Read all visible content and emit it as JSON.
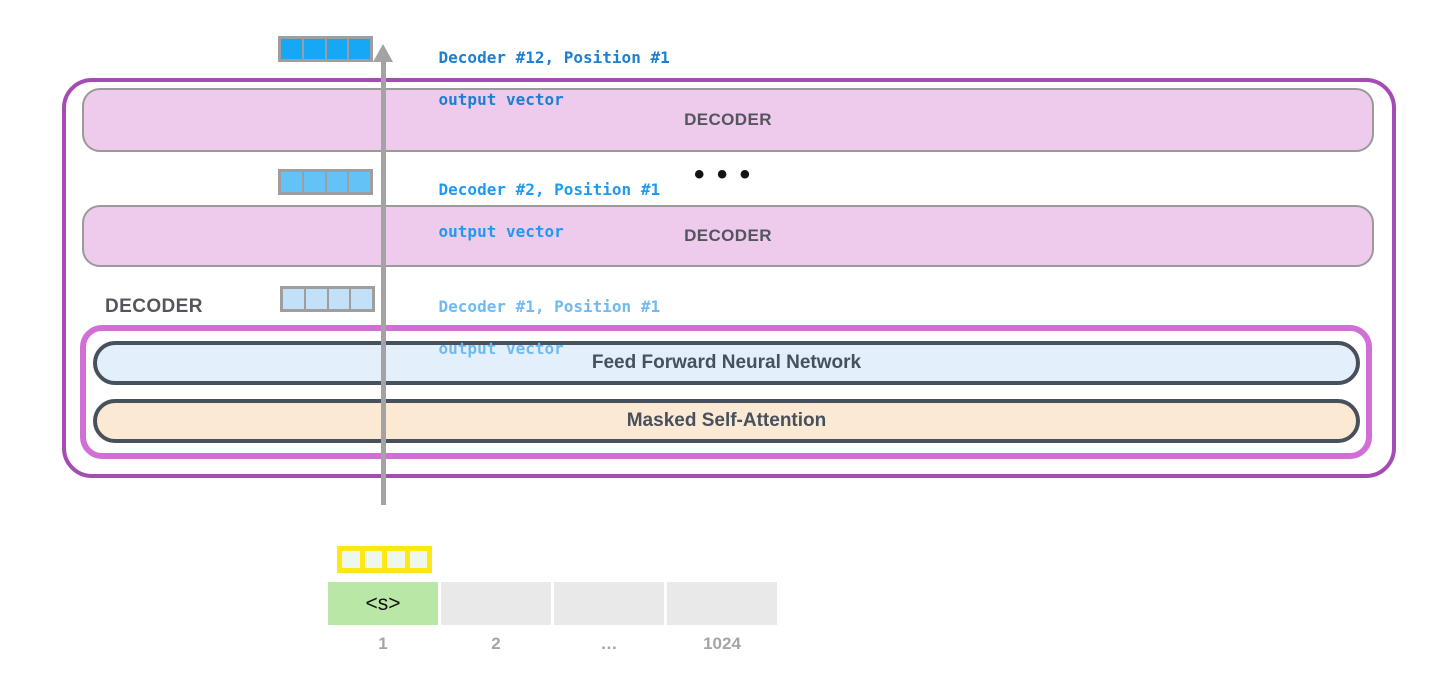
{
  "diagram": {
    "annotations": {
      "decoder12": {
        "line1": "Decoder #12, Position #1",
        "line2": "output vector",
        "color": "#1b7fd4"
      },
      "decoder2": {
        "line1": "Decoder #2, Position #1",
        "line2": "output vector",
        "color": "#1e9af0"
      },
      "decoder1": {
        "line1": "Decoder #1, Position #1",
        "line2": "output vector",
        "color": "#70baf1"
      }
    },
    "stack": {
      "decoder_top_label": "DECODER",
      "decoder_middle_label": "DECODER",
      "decoder_side_label": "DECODER",
      "ellipsis": "• • •",
      "ffnn_label": "Feed Forward Neural Network",
      "attention_label": "Masked Self-Attention"
    },
    "vectors": {
      "decoder12_output": {
        "cells": [
          {
            "bg": "#16a7f5"
          },
          {
            "bg": "#16a7f5"
          },
          {
            "bg": "#16a7f5"
          },
          {
            "bg": "#16a7f5"
          }
        ]
      },
      "decoder2_output": {
        "cells": [
          {
            "bg": "#64c2f7"
          },
          {
            "bg": "#64c2f7"
          },
          {
            "bg": "#64c2f7"
          },
          {
            "bg": "#64c2f7"
          }
        ]
      },
      "decoder1_output": {
        "cells": [
          {
            "bg": "#c2e0f8"
          },
          {
            "bg": "#c2e0f8"
          },
          {
            "bg": "#c2e0f8"
          },
          {
            "bg": "#c2e0f8"
          }
        ]
      },
      "embedding": {
        "cells": [
          {
            "bg": "#edf7ec"
          },
          {
            "bg": "#edf7ec"
          },
          {
            "bg": "#edf7ec"
          },
          {
            "bg": "#edf7ec"
          }
        ]
      }
    },
    "input": {
      "tokens": [
        {
          "label": "<s>",
          "bg": "#b9e7a6"
        },
        {
          "label": "",
          "bg": "#e9e9e9"
        },
        {
          "label": "",
          "bg": "#e9e9e9"
        },
        {
          "label": "",
          "bg": "#e9e9e9"
        }
      ],
      "positions": [
        "1",
        "2",
        "…",
        "1024"
      ]
    },
    "colors": {
      "outer_border": "#a54bb4",
      "inner_border": "#d16fd6",
      "decoder_fill": "#eecaec",
      "decoder_border": "#9a9a9a",
      "ffnn_fill": "#e3f0fc",
      "attention_fill": "#fbe9d4",
      "pill_border": "#47505c",
      "arrow": "#a3a3a3",
      "vector_border": "#9e9e9e",
      "embedding_border": "#ffe713",
      "start_token_fill": "#b9e7a6",
      "empty_token_fill": "#e9e9e9",
      "label_text": "#54565e",
      "position_text": "#a5a5a5"
    }
  }
}
